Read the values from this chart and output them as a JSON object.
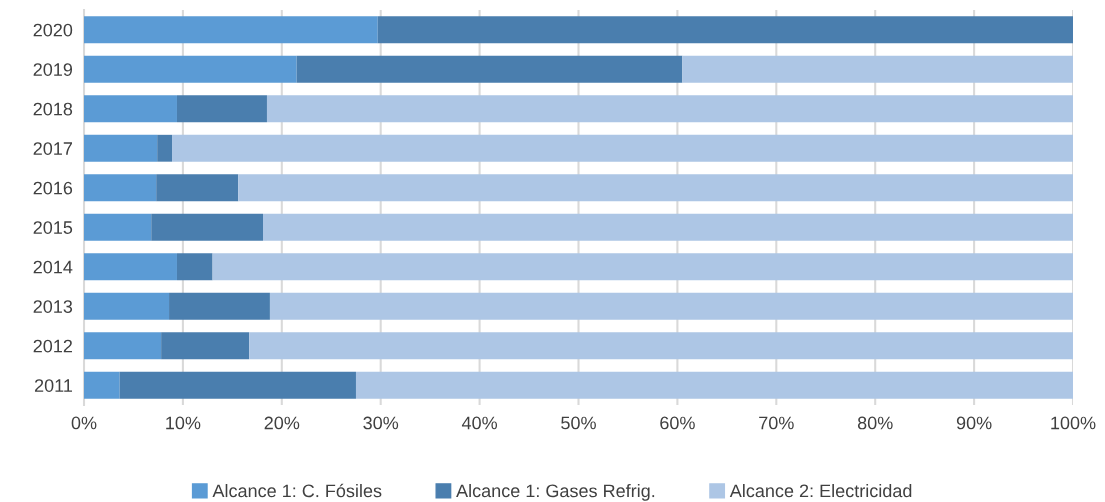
{
  "chart_data": {
    "type": "bar",
    "orientation": "horizontal",
    "stacked": true,
    "categories": [
      "2020",
      "2019",
      "2018",
      "2017",
      "2016",
      "2015",
      "2014",
      "2013",
      "2012",
      "2011"
    ],
    "series": [
      {
        "name": "Alcance 1: C. Fósiles",
        "color": "#5b9bd5",
        "values": [
          29.7,
          21.5,
          9.4,
          7.4,
          7.3,
          6.8,
          9.4,
          8.6,
          7.8,
          3.6
        ]
      },
      {
        "name": "Alcance 1: Gases Refrig.",
        "color": "#4a7eae",
        "values": [
          70.3,
          39.0,
          9.1,
          1.5,
          8.3,
          11.3,
          3.6,
          10.2,
          8.9,
          23.9
        ]
      },
      {
        "name": "Alcance 2: Electricidad",
        "color": "#adc6e5",
        "values": [
          0,
          39.5,
          81.5,
          91.1,
          84.4,
          81.9,
          87.0,
          81.2,
          83.3,
          72.5
        ]
      }
    ],
    "xlim": [
      0,
      100
    ],
    "xticks": [
      {
        "value": 0,
        "label": "0%"
      },
      {
        "value": 10,
        "label": "10%"
      },
      {
        "value": 20,
        "label": "20%"
      },
      {
        "value": 30,
        "label": "30%"
      },
      {
        "value": 40,
        "label": "40%"
      },
      {
        "value": 50,
        "label": "50%"
      },
      {
        "value": 60,
        "label": "60%"
      },
      {
        "value": 70,
        "label": "70%"
      },
      {
        "value": 80,
        "label": "80%"
      },
      {
        "value": 90,
        "label": "90%"
      },
      {
        "value": 100,
        "label": "100%"
      }
    ],
    "grid": "x",
    "legend": "bottom"
  }
}
